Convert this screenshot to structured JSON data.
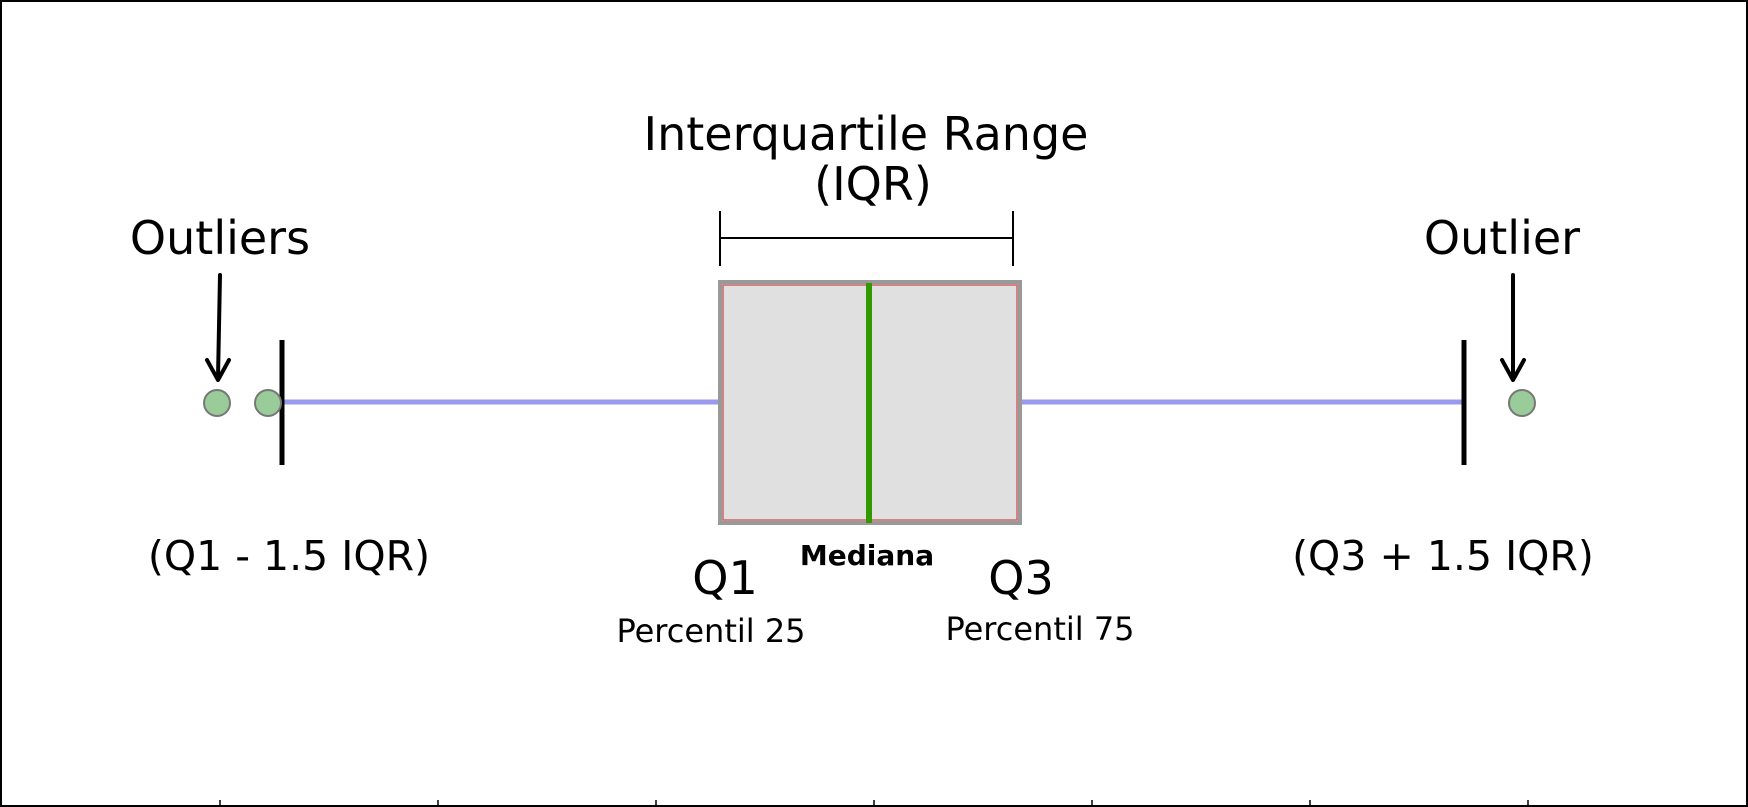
{
  "title": {
    "line1": "Interquartile Range",
    "line2": "(IQR)"
  },
  "labels": {
    "outliers_left": "Outliers",
    "outlier_right": "Outlier",
    "lower_fence": "(Q1 - 1.5 IQR)",
    "upper_fence": "(Q3 + 1.5 IQR)",
    "q1": "Q1",
    "q1_sub": "Percentil 25",
    "median": "Mediana",
    "q3": "Q3",
    "q3_sub": "Percentil 75"
  },
  "colors": {
    "whisker": "#9999ee",
    "box_fill": "#e0e0e0",
    "box_border": "#999999",
    "box_inner_border": "#cc6666",
    "median_line": "#339900",
    "outlier_fill": "#99cc99",
    "outlier_stroke": "#777777",
    "annotation": "#000000"
  }
}
